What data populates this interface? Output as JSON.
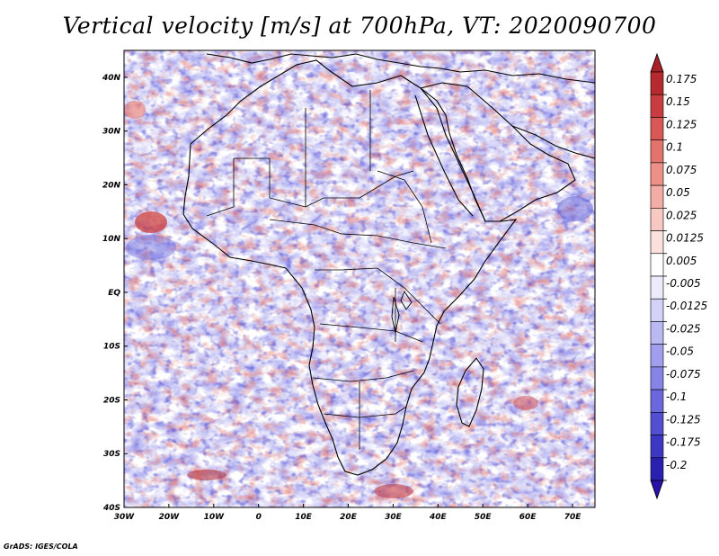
{
  "title": "Vertical velocity [m/s] at 700hPa, VT: 2020090700",
  "credit": "GrADS: IGES/COLA",
  "map": {
    "lon_range": [
      -30,
      75
    ],
    "lat_range": [
      -40,
      45
    ],
    "lon_ticks": [
      {
        "value": -30,
        "label": "30W"
      },
      {
        "value": -20,
        "label": "20W"
      },
      {
        "value": -10,
        "label": "10W"
      },
      {
        "value": 0,
        "label": "0"
      },
      {
        "value": 10,
        "label": "10E"
      },
      {
        "value": 20,
        "label": "20E"
      },
      {
        "value": 30,
        "label": "30E"
      },
      {
        "value": 40,
        "label": "40E"
      },
      {
        "value": 50,
        "label": "50E"
      },
      {
        "value": 60,
        "label": "60E"
      },
      {
        "value": 70,
        "label": "70E"
      }
    ],
    "lat_ticks": [
      {
        "value": 40,
        "label": "40N"
      },
      {
        "value": 30,
        "label": "30N"
      },
      {
        "value": 20,
        "label": "20N"
      },
      {
        "value": 10,
        "label": "10N"
      },
      {
        "value": 0,
        "label": "EQ"
      },
      {
        "value": -10,
        "label": "10S"
      },
      {
        "value": -20,
        "label": "20S"
      },
      {
        "value": -30,
        "label": "30S"
      },
      {
        "value": -40,
        "label": "40S"
      }
    ]
  },
  "colorbar": {
    "levels": [
      {
        "label": "0.175",
        "color": "#b42a2f"
      },
      {
        "label": "0.15",
        "color": "#c93d40"
      },
      {
        "label": "0.125",
        "color": "#d95755"
      },
      {
        "label": "0.1",
        "color": "#e3736d"
      },
      {
        "label": "0.075",
        "color": "#ec9088"
      },
      {
        "label": "0.05",
        "color": "#f3ada6"
      },
      {
        "label": "0.025",
        "color": "#f8c9c3"
      },
      {
        "label": "0.0125",
        "color": "#fbe1dd"
      },
      {
        "label": "0.005",
        "color": "#ffffff"
      },
      {
        "label": "-0.005",
        "color": "#ebebfb"
      },
      {
        "label": "-0.0125",
        "color": "#d4d3f7"
      },
      {
        "label": "-0.025",
        "color": "#bab9f2"
      },
      {
        "label": "-0.05",
        "color": "#a19fed"
      },
      {
        "label": "-0.075",
        "color": "#8684e6"
      },
      {
        "label": "-0.1",
        "color": "#6b68dd"
      },
      {
        "label": "-0.125",
        "color": "#524fd2"
      },
      {
        "label": "-0.175",
        "color": "#3c38c4"
      },
      {
        "label": "-0.2",
        "color": "#2a20b0"
      }
    ],
    "top_color": "#a82028",
    "bottom_color": "#2a10a8"
  },
  "colors": {
    "field_white": "#ffffff",
    "field_blue": "#8f8cea",
    "field_red": "#e2706a",
    "coast": "#000000"
  }
}
